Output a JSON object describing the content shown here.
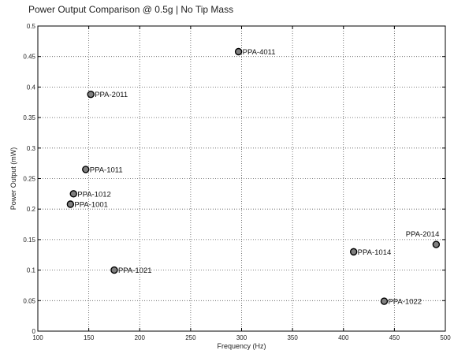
{
  "chart_data": {
    "type": "scatter",
    "title": "Power Output Comparison @ 0.5g  |  No Tip Mass",
    "xlabel": "Frequency (Hz)",
    "ylabel": "Power Output (mW)",
    "xlim": [
      100,
      500
    ],
    "ylim": [
      0,
      0.5
    ],
    "xticks": [
      100,
      150,
      200,
      250,
      300,
      350,
      400,
      450,
      500
    ],
    "yticks": [
      0,
      0.05,
      0.1,
      0.15,
      0.2,
      0.25,
      0.3,
      0.35,
      0.4,
      0.45,
      0.5
    ],
    "grid": true,
    "marker_color": "#808080",
    "marker_edge_color": "#000000",
    "points": [
      {
        "label": "PPA-4011",
        "x": 297,
        "y": 0.458
      },
      {
        "label": "PPA-2011",
        "x": 152,
        "y": 0.388
      },
      {
        "label": "PPA-1011",
        "x": 147,
        "y": 0.265
      },
      {
        "label": "PPA-1012",
        "x": 135,
        "y": 0.225
      },
      {
        "label": "PPA-1001",
        "x": 132,
        "y": 0.208
      },
      {
        "label": "PPA-1021",
        "x": 175,
        "y": 0.1
      },
      {
        "label": "PPA-1014",
        "x": 410,
        "y": 0.13
      },
      {
        "label": "PPA-1022",
        "x": 440,
        "y": 0.049
      },
      {
        "label": "PPA-2014",
        "x": 491,
        "y": 0.142
      }
    ]
  }
}
